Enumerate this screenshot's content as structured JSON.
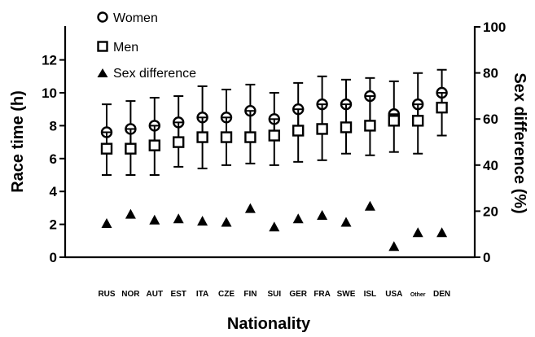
{
  "chart_data": {
    "type": "scatter",
    "categories": [
      "RUS",
      "NOR",
      "AUT",
      "EST",
      "ITA",
      "CZE",
      "FIN",
      "SUI",
      "GER",
      "FRA",
      "SWE",
      "ISL",
      "USA",
      "Other",
      "DEN"
    ],
    "xlabel": "Nationality",
    "ylabel": "Race time (h)",
    "y2label": "Sex difference (%)",
    "ylim": [
      0,
      14
    ],
    "yticks": [
      "0",
      "2",
      "4",
      "6",
      "8",
      "10",
      "12"
    ],
    "y2lim": [
      0,
      100
    ],
    "y2ticks": [
      "0",
      "20",
      "40",
      "60",
      "80",
      "100"
    ],
    "legend_position": "top-left",
    "series": [
      {
        "name": "Women",
        "marker": "open-circle",
        "axis": "left",
        "values": [
          7.6,
          7.8,
          8.0,
          8.2,
          8.5,
          8.5,
          8.9,
          8.4,
          9.0,
          9.3,
          9.3,
          9.8,
          8.7,
          9.3,
          10.0
        ],
        "err_low": [
          6.7,
          6.5,
          6.8,
          7.0,
          7.2,
          7.3,
          7.4,
          7.3,
          7.7,
          7.8,
          7.9,
          8.1,
          8.4,
          8.3,
          9.0
        ],
        "err_high": [
          9.3,
          9.5,
          9.7,
          9.8,
          10.4,
          10.2,
          10.5,
          10.0,
          10.6,
          11.0,
          10.8,
          10.9,
          10.7,
          11.2,
          11.4
        ]
      },
      {
        "name": "Men",
        "marker": "open-square",
        "axis": "left",
        "values": [
          6.6,
          6.6,
          6.8,
          7.0,
          7.3,
          7.3,
          7.3,
          7.4,
          7.7,
          7.8,
          7.9,
          8.0,
          8.3,
          8.3,
          9.1
        ],
        "err_low": [
          5.0,
          5.0,
          5.0,
          5.5,
          5.4,
          5.6,
          5.7,
          5.6,
          5.8,
          5.9,
          6.3,
          6.2,
          6.4,
          6.3,
          7.4
        ],
        "err_high": [
          7.6,
          7.8,
          8.0,
          8.2,
          8.5,
          8.5,
          8.9,
          8.4,
          9.0,
          9.3,
          9.3,
          9.8,
          8.7,
          9.3,
          10.0
        ]
      },
      {
        "name": "Sex difference",
        "marker": "filled-triangle",
        "axis": "right",
        "values": [
          14.5,
          18.5,
          16.0,
          16.5,
          15.5,
          15.0,
          21.0,
          13.0,
          16.5,
          18.0,
          15.0,
          22.0,
          4.5,
          10.5,
          10.5
        ]
      }
    ]
  }
}
